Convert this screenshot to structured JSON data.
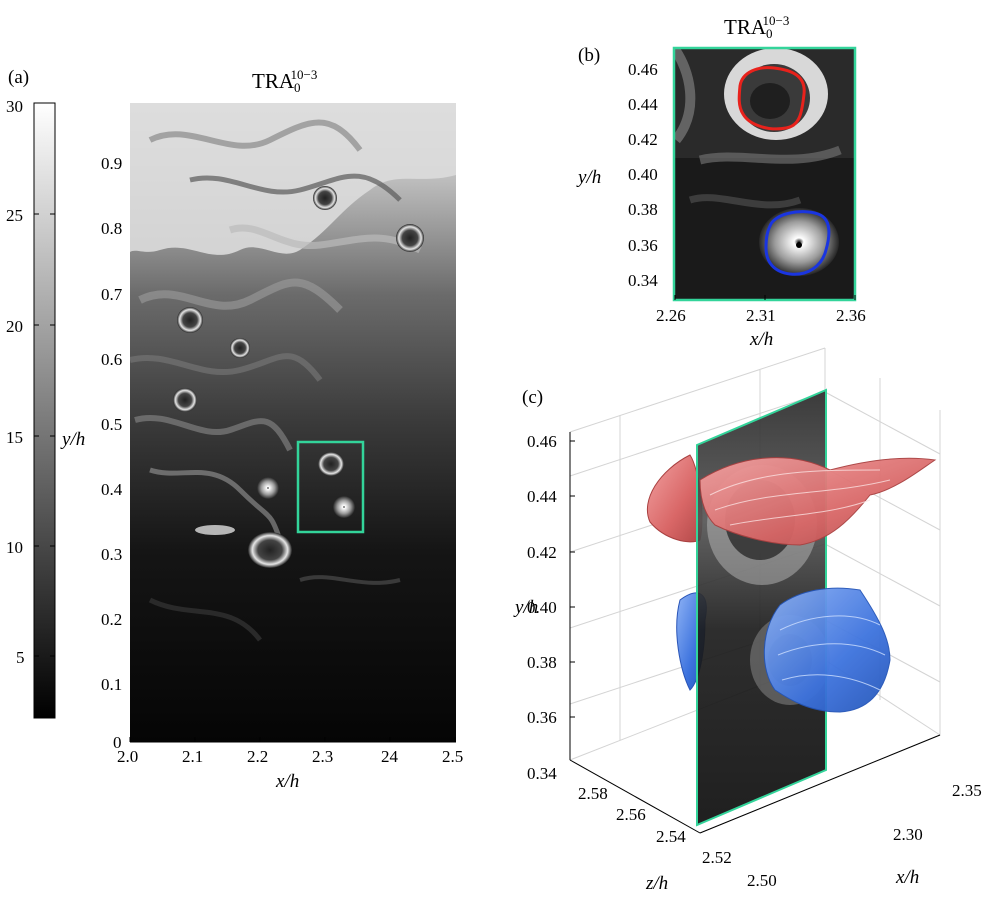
{
  "panel_a": {
    "label": "(a)",
    "title": {
      "base": "TRA",
      "sub": "0",
      "sup": "10−3"
    },
    "colorbar_ticks": [
      "30",
      "25",
      "20",
      "15",
      "10",
      "5"
    ],
    "xlabel": "x/h",
    "ylabel": "y/h",
    "xticks": [
      "2.0",
      "2.1",
      "2.2",
      "2.3",
      "24",
      "2.5"
    ],
    "yticks": [
      "0.9",
      "0.8",
      "0.7",
      "0.6",
      "0.5",
      "0.4",
      "0.3",
      "0.2",
      "0.1",
      "0"
    ]
  },
  "panel_b": {
    "label": "(b)",
    "title": {
      "base": "TRA",
      "sub": "0",
      "sup": "10−3"
    },
    "xlabel": "x/h",
    "ylabel": "y/h",
    "xticks": [
      "2.26",
      "2.31",
      "2.36"
    ],
    "yticks": [
      "0.46",
      "0.44",
      "0.42",
      "0.40",
      "0.38",
      "0.36",
      "0.34"
    ]
  },
  "panel_c": {
    "label": "(c)",
    "ylabel": "y/h",
    "zlabel": "z/h",
    "xlabel": "x/h",
    "yticks": [
      "0.46",
      "0.44",
      "0.42",
      "0.40",
      "0.38",
      "0.36",
      "0.34"
    ],
    "zticks": [
      "2.58",
      "2.56",
      "2.54",
      "2.52",
      "2.50"
    ],
    "xticks": [
      "2.35",
      "2.30"
    ]
  },
  "colors": {
    "frame": "#33d49a",
    "upper_vortex": "#e8221c",
    "lower_vortex": "#1a35e0",
    "upper_tube": "#e06f6f",
    "lower_tube": "#4a7ee6"
  }
}
